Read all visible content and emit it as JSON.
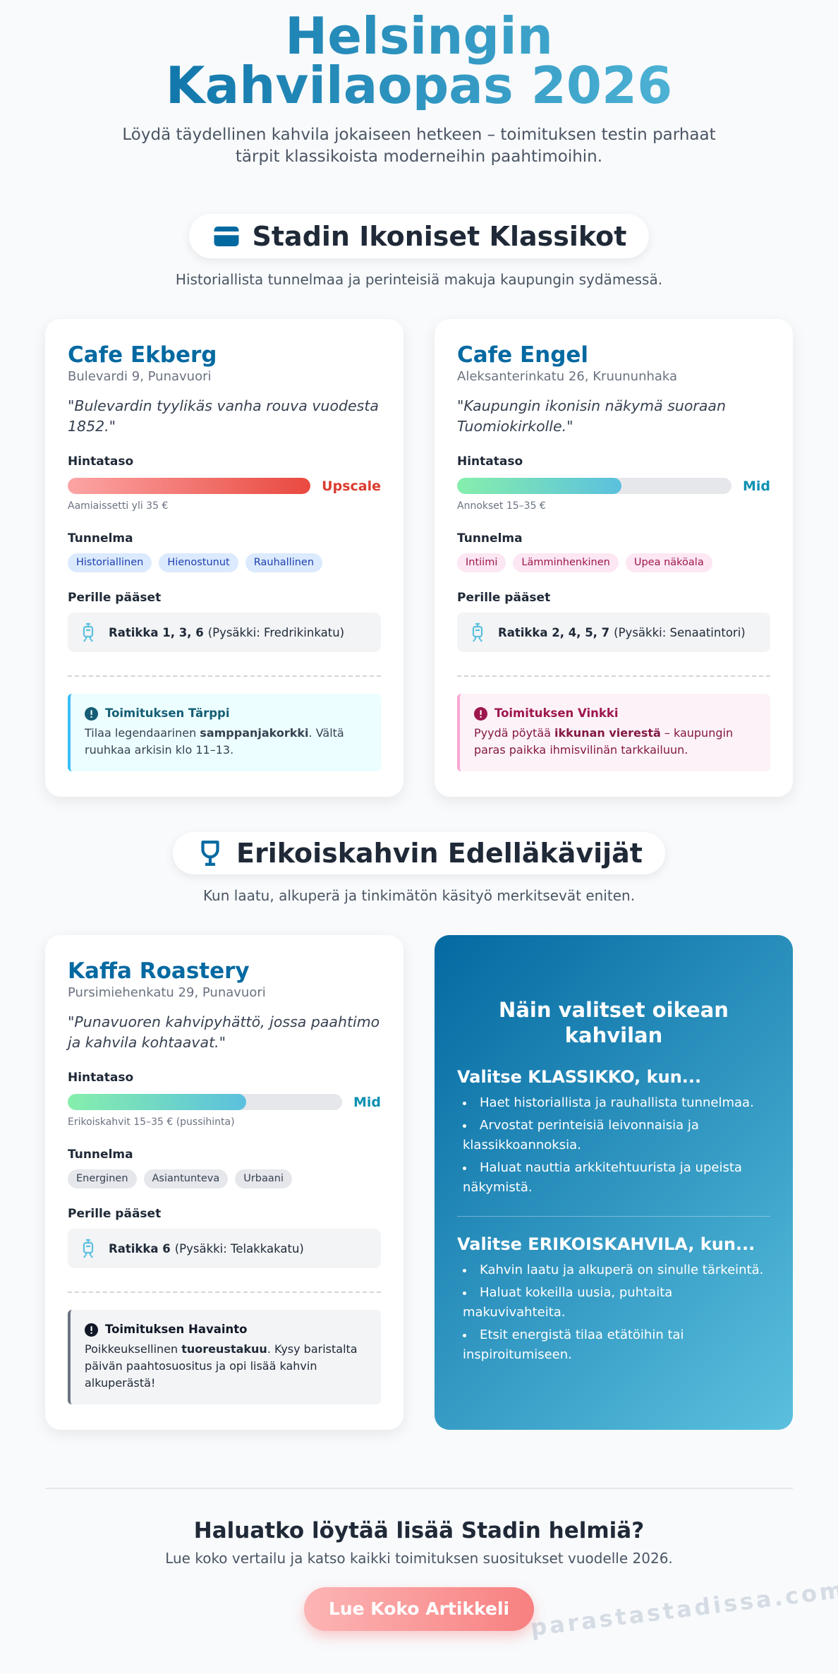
{
  "header": {
    "title": "Helsingin Kahvilaopas 2026",
    "subtitle": "Löydä täydellinen kahvila jokaiseen hetkeen – toimituksen testin parhaat tärpit klassikoista moderneihin paahtimoihin."
  },
  "sections": [
    {
      "title": "Stadin Ikoniset Klassikot",
      "description": "Historiallista tunnelmaa ja perinteisiä makuja kaupungin sydämessä.",
      "cards": [
        {
          "name": "Cafe Ekberg",
          "address": "Bulevardi 9, Punavuori",
          "quote": "\"Bulevardin tyylikäs vanha rouva vuodesta 1852.\"",
          "price_label": "Hintataso",
          "price_level": "Upscale",
          "price_fill": 100,
          "price_note": "Aamiaissetti yli 35 €",
          "mood_label": "Tunnelma",
          "tags": [
            "Historiallinen",
            "Hienostunut",
            "Rauhallinen"
          ],
          "transport_label": "Perille pääset",
          "transport_lines": "Ratikka 1, 3, 6",
          "transport_stop": "(Pysäkki: Fredrikinkatu)",
          "tip_title": "Toimituksen Tärppi",
          "tip_text": [
            "Tilaa legendaarinen ",
            "samppanjakorkki",
            ". Vältä ruuhkaa arkisin klo 11–13."
          ]
        },
        {
          "name": "Cafe Engel",
          "address": "Aleksanterinkatu 26, Kruununhaka",
          "quote": "\"Kaupungin ikonisin näkymä suoraan Tuomiokirkolle.\"",
          "price_label": "Hintataso",
          "price_level": "Mid",
          "price_fill": 60,
          "price_note": "Annokset 15–35 €",
          "mood_label": "Tunnelma",
          "tags": [
            "Intiimi",
            "Lämminhenkinen",
            "Upea näköala"
          ],
          "transport_label": "Perille pääset",
          "transport_lines": "Ratikka 2, 4, 5, 7",
          "transport_stop": "(Pysäkki: Senaatintori)",
          "tip_title": "Toimituksen Vinkki",
          "tip_text": [
            "Pyydä pöytää ",
            "ikkunan vierestä",
            " – kaupungin paras paikka ihmisvilinän tarkkailuun."
          ]
        }
      ]
    },
    {
      "title": "Erikoiskahvin Edelläkävijät",
      "description": "Kun laatu, alkuperä ja tinkimätön käsityö merkitsevät eniten.",
      "cards": [
        {
          "name": "Kaffa Roastery",
          "address": "Pursimiehenkatu 29, Punavuori",
          "quote": "\"Punavuoren kahvipyhättö, jossa paahtimo ja kahvila kohtaavat.\"",
          "price_label": "Hintataso",
          "price_level": "Mid",
          "price_fill": 65,
          "price_note": "Erikoiskahvit 15–35 € (pussihinta)",
          "mood_label": "Tunnelma",
          "tags": [
            "Energinen",
            "Asiantunteva",
            "Urbaani"
          ],
          "transport_label": "Perille pääset",
          "transport_lines": "Ratikka 6",
          "transport_stop": "(Pysäkki: Telakkakatu)",
          "tip_title": "Toimituksen Havainto",
          "tip_text": [
            "Poikkeuksellinen ",
            "tuoreustakuu",
            ". Kysy baristalta päivän paahtosuositus ja opi lisää kahvin alkuperästä!"
          ]
        }
      ],
      "guide": {
        "title": "Näin valitset oikean kahvilan",
        "groups": [
          {
            "heading": "Valitse KLASSIKKO, kun...",
            "items": [
              "Haet historiallista ja rauhallista tunnelmaa.",
              "Arvostat perinteisiä leivonnaisia ja klassikkoannoksia.",
              "Haluat nauttia arkkitehtuurista ja upeista näkymistä."
            ]
          },
          {
            "heading": "Valitse ERIKOISKAHVILA, kun...",
            "items": [
              "Kahvin laatu ja alkuperä on sinulle tärkeintä.",
              "Haluat kokeilla uusia, puhtaita makuvivahteita.",
              "Etsit energistä tilaa etätöihin tai inspiroitumiseen."
            ]
          }
        ]
      }
    }
  ],
  "footer": {
    "title": "Haluatko löytää lisää Stadin helmiä?",
    "text": "Lue koko vertailu ja katso kaikki toimituksen suositukset vuodelle 2026.",
    "button": "Lue Koko Artikkeli",
    "watermark": "parastastadissa.com"
  }
}
